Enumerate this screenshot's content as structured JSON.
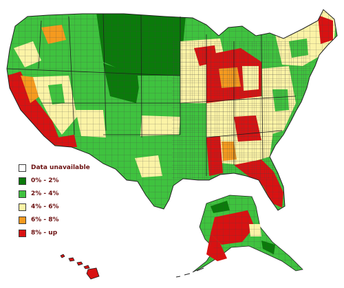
{
  "map": {
    "region": "United States counties",
    "colors": {
      "unavailable": "#ffffff",
      "band_0_2": "#0b7a0b",
      "band_2_4": "#3fc23f",
      "band_4_6": "#fbf3a6",
      "band_6_8": "#f59a1f",
      "band_8_up": "#d81212",
      "state_border": "#202020",
      "county_border": "#555555",
      "water": "#ffffff"
    }
  },
  "legend": {
    "items": [
      {
        "label": "Data unavailable",
        "color": "#ffffff"
      },
      {
        "label": "0% - 2%",
        "color": "#0b7a0b"
      },
      {
        "label": "2% - 4%",
        "color": "#3fc23f"
      },
      {
        "label": "4% - 6%",
        "color": "#fbf3a6"
      },
      {
        "label": "6% - 8%",
        "color": "#f59a1f"
      },
      {
        "label": "8% - up",
        "color": "#d81212"
      }
    ]
  }
}
